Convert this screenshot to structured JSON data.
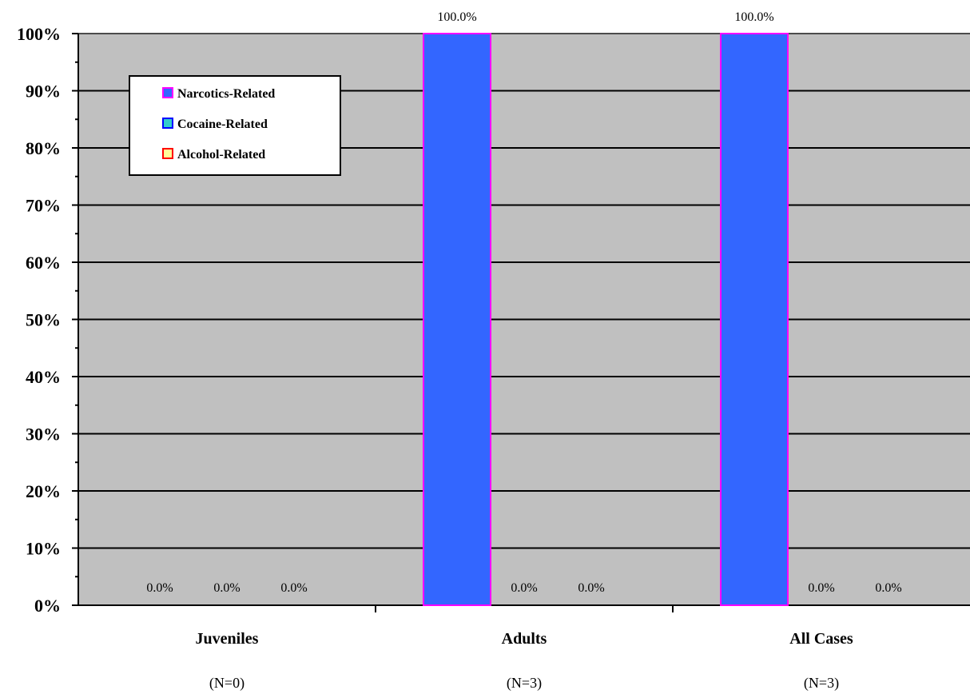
{
  "chart_data": {
    "type": "bar",
    "categories": [
      "Juveniles",
      "Adults",
      "All Cases"
    ],
    "category_counts": [
      "(N=0)",
      "(N=3)",
      "(N=3)"
    ],
    "series": [
      {
        "name": "Narcotics-Related",
        "values": [
          0,
          100,
          100
        ],
        "labels": [
          "0.0%",
          "100.0%",
          "100.0%"
        ]
      },
      {
        "name": "Cocaine-Related",
        "values": [
          0,
          0,
          0
        ],
        "labels": [
          "0.0%",
          "0.0%",
          "0.0%"
        ]
      },
      {
        "name": "Alcohol-Related",
        "values": [
          0,
          0,
          0
        ],
        "labels": [
          "0.0%",
          "0.0%",
          "0.0%"
        ]
      }
    ],
    "yticks": [
      "0%",
      "10%",
      "20%",
      "30%",
      "40%",
      "50%",
      "60%",
      "70%",
      "80%",
      "90%",
      "100%"
    ],
    "ylim": [
      0,
      100
    ],
    "grid": true,
    "legend_position": "top-left",
    "colors": {
      "plot_background": "#c0c0c0",
      "bar_fill": "#3366ff",
      "bar_border": "#ff00ff",
      "legend_swatches": [
        {
          "fill": "#3366ff",
          "border": "#ff00ff"
        },
        {
          "fill": "#33cccc",
          "border": "#0000ff"
        },
        {
          "fill": "#ffff99",
          "border": "#ff0000"
        }
      ]
    }
  }
}
